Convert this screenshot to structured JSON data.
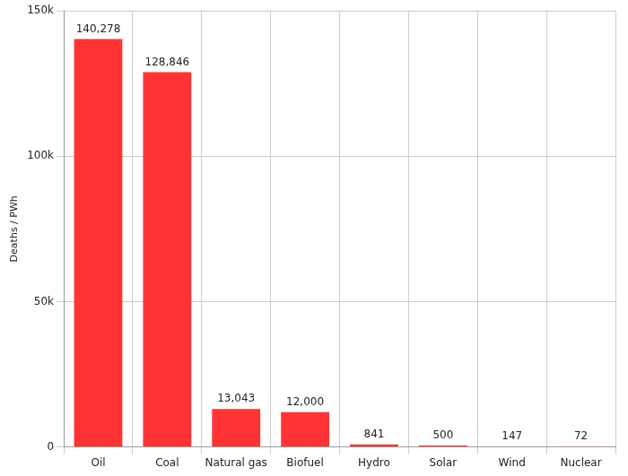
{
  "chart_data": {
    "type": "bar",
    "y_label": "Deaths / PWh",
    "categories": [
      "Oil",
      "Coal",
      "Natural gas",
      "Biofuel",
      "Hydro",
      "Solar",
      "Wind",
      "Nuclear"
    ],
    "values": [
      140278,
      128846,
      13043,
      12000,
      841,
      500,
      147,
      72
    ],
    "value_labels": [
      "140,278",
      "128,846",
      "13,043",
      "12,000",
      "841",
      "500",
      "147",
      "72"
    ],
    "color": "#ff3333",
    "ylim": [
      0,
      150000
    ],
    "yticks": [
      0,
      {
        "value": 50000,
        "label": "50k"
      },
      {
        "value": 100000,
        "label": "100k"
      },
      {
        "value": 150000,
        "label": "150k"
      }
    ],
    "grid": true,
    "data_labels": true
  }
}
